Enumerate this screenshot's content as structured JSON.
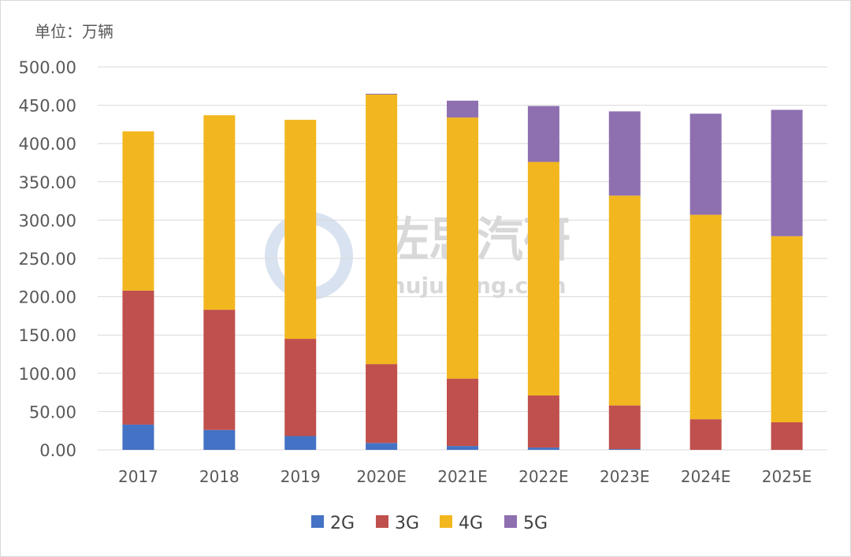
{
  "unit_label": "单位：万辆",
  "watermark": {
    "name": "佐思汽研",
    "url": "shujubang.com"
  },
  "colors": {
    "2G": "#4472c4",
    "3G": "#c0504d",
    "4G": "#f2b71f",
    "5G": "#8e6fb0",
    "grid": "#d9d9d9"
  },
  "chart_data": {
    "type": "bar",
    "stacked": true,
    "title": "",
    "ylabel": "",
    "xlabel": "",
    "ylim": [
      0,
      500
    ],
    "yticks": [
      "0.00",
      "50.00",
      "100.00",
      "150.00",
      "200.00",
      "250.00",
      "300.00",
      "350.00",
      "400.00",
      "450.00",
      "500.00"
    ],
    "categories": [
      "2017",
      "2018",
      "2019",
      "2020E",
      "2021E",
      "2022E",
      "2023E",
      "2024E",
      "2025E"
    ],
    "series": [
      {
        "name": "2G",
        "values": [
          33,
          26,
          18,
          9,
          5,
          3,
          1,
          0,
          0
        ]
      },
      {
        "name": "3G",
        "values": [
          175,
          157,
          127,
          103,
          88,
          68,
          57,
          40,
          36
        ]
      },
      {
        "name": "4G",
        "values": [
          208,
          254,
          286,
          352,
          341,
          305,
          274,
          267,
          243
        ]
      },
      {
        "name": "5G",
        "values": [
          0,
          0,
          0,
          1,
          22,
          73,
          110,
          132,
          165
        ]
      }
    ],
    "grid": true,
    "legend": "bottom"
  }
}
